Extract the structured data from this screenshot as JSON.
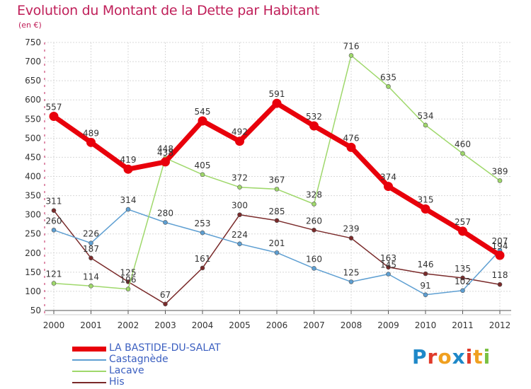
{
  "title": "Evolution du Montant de la Dette par Habitant",
  "subtitle": "(en €)",
  "logo": {
    "text": "Proxiti",
    "letters": [
      {
        "ch": "P",
        "color": "#1e88c8"
      },
      {
        "ch": "r",
        "color": "#e03a2a"
      },
      {
        "ch": "o",
        "color": "#f0a020"
      },
      {
        "ch": "x",
        "color": "#1e88c8"
      },
      {
        "ch": "i",
        "color": "#e03a2a"
      },
      {
        "ch": "t",
        "color": "#f0a020"
      },
      {
        "ch": "i",
        "color": "#7ac142"
      }
    ]
  },
  "chart_data": {
    "type": "line",
    "title": "Evolution du Montant de la Dette par Habitant",
    "subtitle": "(en €)",
    "x": [
      "2000",
      "2001",
      "2002",
      "2003",
      "2004",
      "2005",
      "2006",
      "2007",
      "2008",
      "2009",
      "2010",
      "2011",
      "2012"
    ],
    "ylim": [
      50,
      750
    ],
    "yticks": [
      50,
      100,
      150,
      200,
      250,
      300,
      350,
      400,
      450,
      500,
      550,
      600,
      650,
      700,
      750
    ],
    "grid": true,
    "legend_position": "bottom-left",
    "series": [
      {
        "name": "LA BASTIDE-DU-SALAT",
        "color": "#e8000b",
        "values": [
          557,
          489,
          419,
          438,
          545,
          492,
          591,
          532,
          476,
          374,
          315,
          257,
          194
        ],
        "labels": [
          "557",
          "489",
          "419",
          "438",
          "545",
          "492",
          "591",
          "532",
          "476",
          "374",
          "315",
          "257",
          "194"
        ]
      },
      {
        "name": "Castagnède",
        "color": "#5e9fd2",
        "values": [
          260,
          226,
          314,
          280,
          253,
          224,
          201,
          160,
          125,
          145,
          91,
          102,
          207
        ],
        "labels": [
          "260",
          "226",
          "314",
          "280",
          "253",
          "224",
          "201",
          "160",
          "125",
          "145",
          "91",
          "102",
          "207"
        ]
      },
      {
        "name": "Lacave",
        "color": "#9fd86b",
        "values": [
          121,
          114,
          106,
          448,
          405,
          372,
          367,
          328,
          716,
          635,
          534,
          460,
          389
        ],
        "labels": [
          "121",
          "114",
          "106",
          "448",
          "405",
          "372",
          "367",
          "328",
          "716",
          "635",
          "534",
          "460",
          "389"
        ]
      },
      {
        "name": "His",
        "color": "#7a2a2a",
        "values": [
          311,
          187,
          125,
          67,
          161,
          300,
          285,
          260,
          239,
          163,
          146,
          135,
          118
        ],
        "labels": [
          "311",
          "187",
          "125",
          "67",
          "161",
          "300",
          "285",
          "260",
          "239",
          "163",
          "146",
          "135",
          "118"
        ]
      }
    ]
  }
}
